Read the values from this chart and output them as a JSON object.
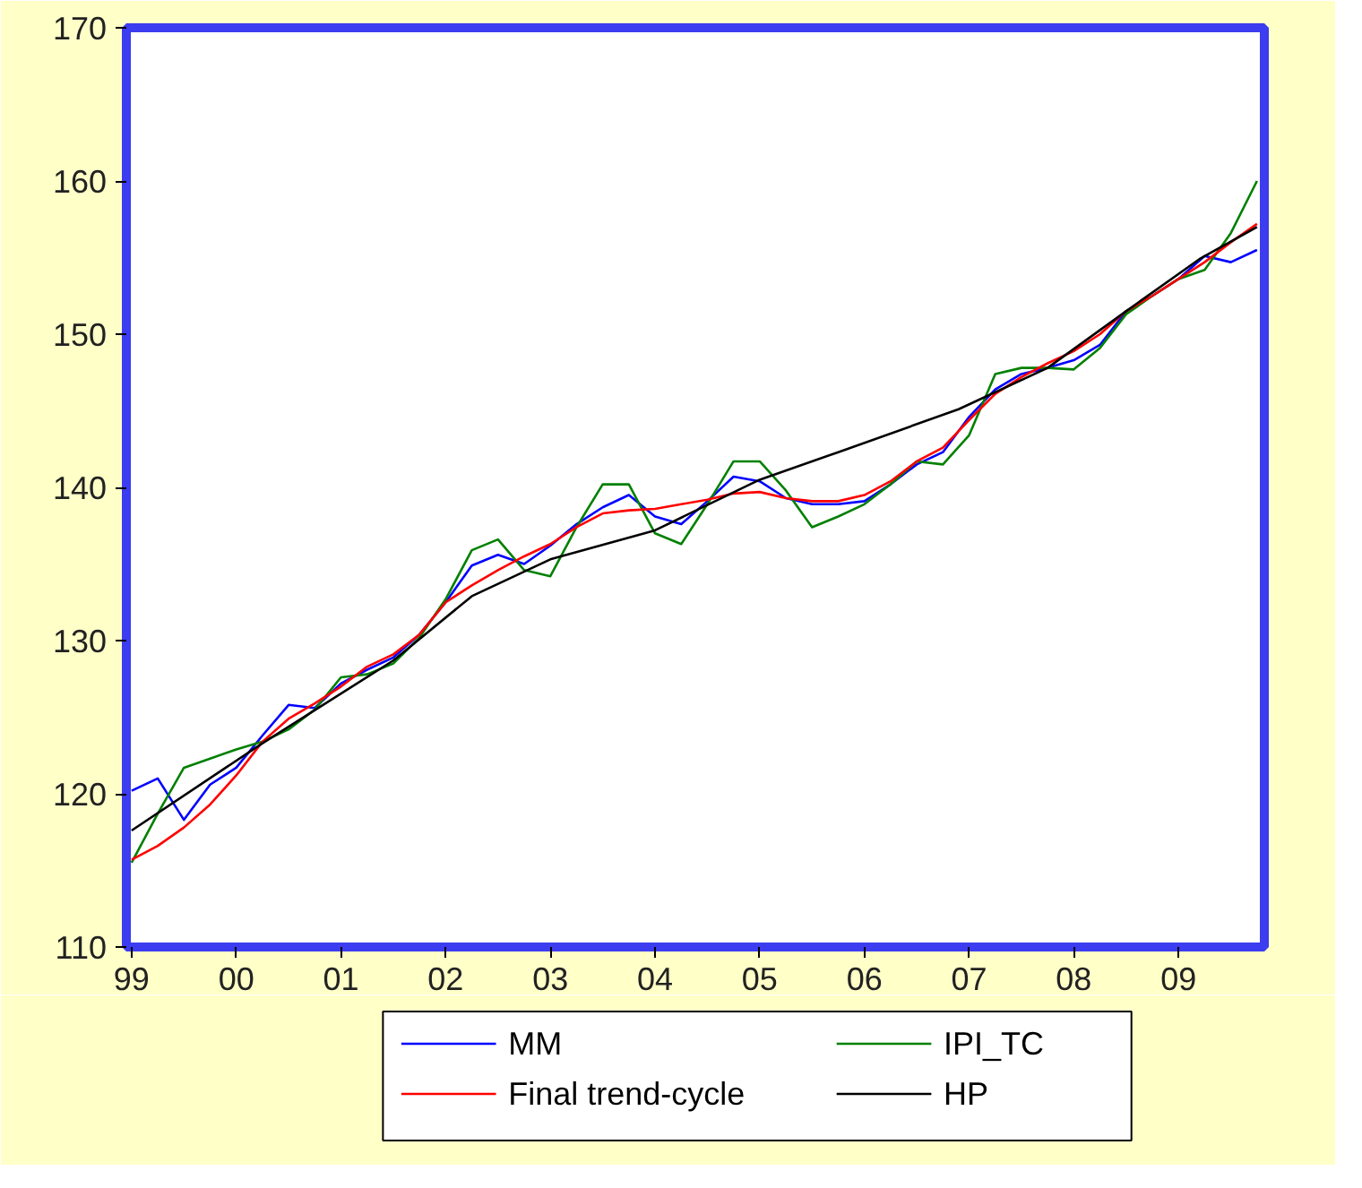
{
  "chart_data": {
    "type": "line",
    "x": [
      1999.0,
      1999.25,
      1999.5,
      1999.75,
      2000.0,
      2000.25,
      2000.5,
      2000.75,
      2001.0,
      2001.25,
      2001.5,
      2001.75,
      2002.0,
      2002.25,
      2002.5,
      2002.75,
      2003.0,
      2003.25,
      2003.5,
      2003.75,
      2004.0,
      2004.25,
      2004.5,
      2004.75,
      2005.0,
      2005.25,
      2005.5,
      2005.75,
      2006.0,
      2006.25,
      2006.5,
      2006.75,
      2007.0,
      2007.25,
      2007.5,
      2007.75,
      2008.0,
      2008.25,
      2008.5,
      2008.75,
      2009.0,
      2009.25,
      2009.5,
      2009.75
    ],
    "series": [
      {
        "name": "MM",
        "color": "#0000ff",
        "values": [
          120.2,
          121.0,
          118.3,
          120.6,
          121.7,
          123.8,
          125.8,
          125.6,
          127.2,
          128.1,
          128.9,
          130.4,
          132.5,
          134.9,
          135.6,
          135.0,
          136.2,
          137.6,
          138.7,
          139.5,
          138.1,
          137.6,
          139.1,
          140.7,
          140.4,
          139.3,
          138.9,
          138.9,
          139.1,
          140.2,
          141.5,
          142.3,
          144.6,
          146.4,
          147.4,
          147.8,
          148.3,
          149.3,
          151.5,
          152.5,
          153.6,
          155.1,
          154.7,
          155.5
        ]
      },
      {
        "name": "IPI_TC",
        "color": "#008000",
        "values": [
          115.5,
          118.7,
          121.7,
          122.3,
          122.9,
          123.4,
          124.2,
          125.5,
          127.6,
          127.8,
          128.5,
          130.2,
          132.7,
          135.9,
          136.6,
          134.6,
          134.2,
          137.4,
          140.2,
          140.2,
          137.0,
          136.3,
          138.9,
          141.7,
          141.7,
          139.8,
          137.4,
          138.1,
          138.9,
          140.2,
          141.7,
          141.5,
          143.4,
          147.4,
          147.8,
          147.8,
          147.7,
          149.1,
          151.3,
          152.5,
          153.6,
          154.2,
          156.6,
          160.0
        ]
      },
      {
        "name": "Final trend-cycle",
        "color": "#ff0000",
        "values": [
          115.7,
          116.6,
          117.8,
          119.3,
          121.2,
          123.4,
          124.9,
          125.9,
          127.0,
          128.3,
          129.1,
          130.4,
          132.5,
          133.6,
          134.6,
          135.5,
          136.3,
          137.4,
          138.3,
          138.5,
          138.6,
          138.9,
          139.2,
          139.6,
          139.7,
          139.3,
          139.1,
          139.1,
          139.5,
          140.4,
          141.7,
          142.6,
          144.4,
          146.1,
          147.2,
          148.1,
          148.9,
          150.0,
          151.5,
          152.5,
          153.6,
          154.7,
          156.0,
          157.2
        ]
      },
      {
        "name": "HP",
        "color": "#000000",
        "x": [
          1999.0,
          2000.25,
          2001.5,
          2002.25,
          2003.0,
          2004.0,
          2005.0,
          2005.75,
          2006.9,
          2007.75,
          2008.5,
          2009.2,
          2009.75
        ],
        "values": [
          117.6,
          123.3,
          128.7,
          132.9,
          135.3,
          137.2,
          140.5,
          142.3,
          145.1,
          147.8,
          151.5,
          154.9,
          157.0
        ]
      }
    ],
    "xlim": [
      1998.95,
      2009.82
    ],
    "ylim": [
      110,
      170
    ],
    "xticks": [
      {
        "value": 1999,
        "label": "99"
      },
      {
        "value": 2000,
        "label": "00"
      },
      {
        "value": 2001,
        "label": "01"
      },
      {
        "value": 2002,
        "label": "02"
      },
      {
        "value": 2003,
        "label": "03"
      },
      {
        "value": 2004,
        "label": "04"
      },
      {
        "value": 2005,
        "label": "05"
      },
      {
        "value": 2006,
        "label": "06"
      },
      {
        "value": 2007,
        "label": "07"
      },
      {
        "value": 2008,
        "label": "08"
      },
      {
        "value": 2009,
        "label": "09"
      }
    ],
    "yticks": [
      110,
      120,
      130,
      140,
      150,
      160,
      170
    ],
    "grid": false,
    "legend": "bottom",
    "line_style": "solid"
  }
}
